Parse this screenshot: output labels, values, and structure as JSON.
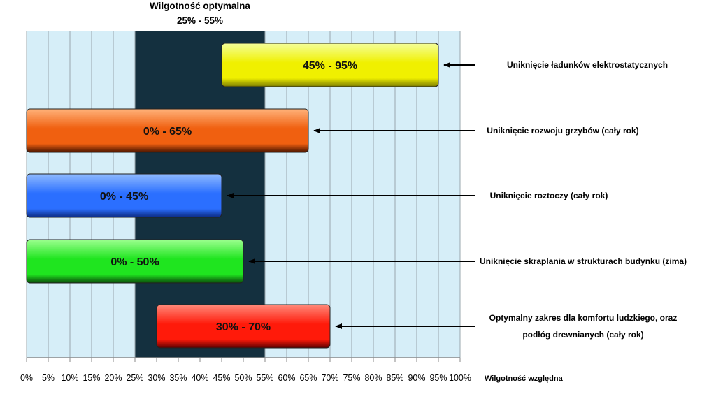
{
  "chart_data": {
    "type": "bar",
    "orientation": "horizontal",
    "x_axis": {
      "label": "Wilgotność względna",
      "min": 0,
      "max": 100,
      "step": 5,
      "tick_labels": [
        "0%",
        "5%",
        "10%",
        "15%",
        "20%",
        "25%",
        "30%",
        "35%",
        "40%",
        "45%",
        "50%",
        "55%",
        "60%",
        "65%",
        "70%",
        "75%",
        "80%",
        "85%",
        "90%",
        "95%",
        "100%"
      ]
    },
    "grid": true,
    "background_color": "#d6eef8",
    "optimal_band": {
      "title": "Wilgotność optymalna",
      "range_label": "25%  -  55%",
      "start": 25,
      "end": 55,
      "color": "#14303f"
    },
    "bars": [
      {
        "label": "45%  -  95%",
        "start": 45,
        "end": 95,
        "annotation_lines": [
          "Uniknięcie ładunków elektrostatycznych"
        ],
        "colors": {
          "light": "#f4ff9a",
          "mid": "#f0f000",
          "dark": "#7a7a00"
        }
      },
      {
        "label": "0%  -  65%",
        "start": 0,
        "end": 65,
        "annotation_lines": [
          "Uniknięcie rozwoju grzybów (cały rok)"
        ],
        "colors": {
          "light": "#ffb27a",
          "mid": "#f06010",
          "dark": "#4a1500"
        }
      },
      {
        "label": "0%  -  45%",
        "start": 0,
        "end": 45,
        "annotation_lines": [
          "Uniknięcie roztoczy (cały rok)"
        ],
        "colors": {
          "light": "#8fbaff",
          "mid": "#2b6fff",
          "dark": "#0b2a80"
        }
      },
      {
        "label": "0%  -  50%",
        "start": 0,
        "end": 50,
        "annotation_lines": [
          "Uniknięcie skraplania w strukturach budynku (zima)"
        ],
        "colors": {
          "light": "#9cff8f",
          "mid": "#1fe51f",
          "dark": "#0a4a0a"
        }
      },
      {
        "label": "30%  -  70%",
        "start": 30,
        "end": 70,
        "annotation_lines": [
          "Optymalny zakres dla komfortu ludzkiego, oraz",
          "podłóg drewnianych (cały rok)"
        ],
        "colors": {
          "light": "#ff8a7a",
          "mid": "#ff1a0a",
          "dark": "#600000"
        }
      }
    ]
  }
}
